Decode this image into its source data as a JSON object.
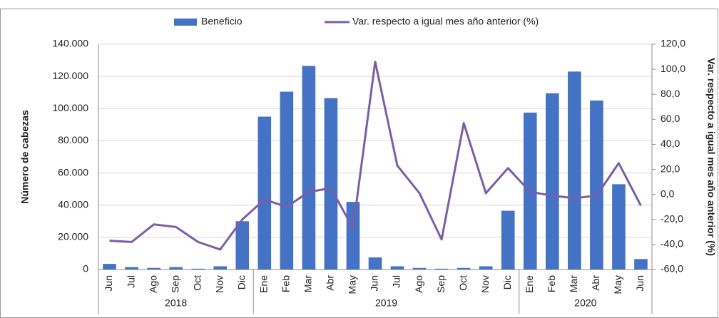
{
  "chart_data": {
    "type": "bar_line",
    "groups": [
      {
        "label": "2018",
        "categories": [
          "Jun",
          "Jul",
          "Ago",
          "Sep",
          "Oct",
          "Nov",
          "Dic"
        ]
      },
      {
        "label": "2019",
        "categories": [
          "Ene",
          "Feb",
          "Mar",
          "Abr",
          "May",
          "Jun",
          "Jul",
          "Ago",
          "Sep",
          "Oct",
          "Nov",
          "Dic"
        ]
      },
      {
        "label": "2020",
        "categories": [
          "Ene",
          "Feb",
          "Mar",
          "Abr",
          "May",
          "Jun"
        ]
      }
    ],
    "series": [
      {
        "name": "Beneficio",
        "type": "bar",
        "color": "#4472c4",
        "values": [
          3500,
          1500,
          1000,
          1500,
          500,
          2000,
          30000,
          95000,
          110500,
          126500,
          106500,
          42000,
          7500,
          2000,
          1000,
          500,
          1000,
          2000,
          36500,
          97500,
          109500,
          123000,
          105000,
          53000,
          6500
        ]
      },
      {
        "name": "Var. respecto a igual mes año anterior (%)",
        "type": "line",
        "axis": "y2",
        "color": "#7b5ea7",
        "values": [
          -37,
          -38,
          -24,
          -26,
          -38,
          -44,
          -20,
          -4,
          -10,
          2,
          5,
          -27,
          106,
          23,
          1,
          -36,
          57,
          1,
          21,
          2,
          -1,
          -3,
          -1,
          25,
          -9
        ]
      }
    ],
    "ylabel": "Número de cabezas",
    "y2label": "Var. respecto a igual mes año anterior (%)",
    "ylim": [
      0,
      140000
    ],
    "yticks": [
      0,
      {
        "value": 20000,
        "label": "20.000"
      },
      {
        "value": 40000,
        "label": "40.000"
      },
      {
        "value": 60000,
        "label": "60.000"
      },
      {
        "value": 80000,
        "label": "80.000"
      },
      {
        "value": 100000,
        "label": "100.000"
      },
      {
        "value": 120000,
        "label": "120.000"
      },
      {
        "value": 140000,
        "label": "140.000"
      }
    ],
    "y2lim": [
      -60,
      120
    ],
    "y2ticks": [
      {
        "value": -60,
        "label": "-60,0"
      },
      {
        "value": -40,
        "label": "-40,0"
      },
      {
        "value": -20,
        "label": "-20,0"
      },
      {
        "value": 0,
        "label": "0,0"
      },
      {
        "value": 20,
        "label": "20,0"
      },
      {
        "value": 40,
        "label": "40,0"
      },
      {
        "value": 60,
        "label": "60,0"
      },
      {
        "value": 80,
        "label": "80,0"
      },
      {
        "value": 100,
        "label": "100,0"
      },
      {
        "value": 120,
        "label": "120,0"
      }
    ],
    "grid": true
  }
}
